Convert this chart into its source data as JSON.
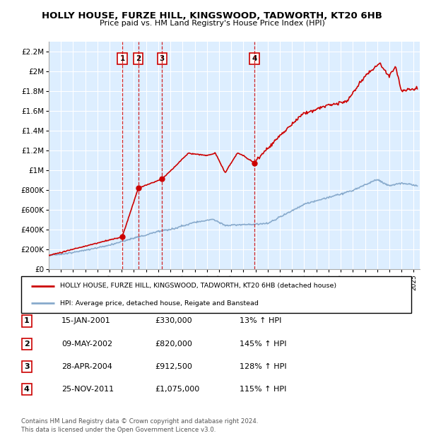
{
  "title": "HOLLY HOUSE, FURZE HILL, KINGSWOOD, TADWORTH, KT20 6HB",
  "subtitle": "Price paid vs. HM Land Registry's House Price Index (HPI)",
  "ylim": [
    0,
    2300000
  ],
  "yticks": [
    0,
    200000,
    400000,
    600000,
    800000,
    1000000,
    1200000,
    1400000,
    1600000,
    1800000,
    2000000,
    2200000
  ],
  "ytick_labels": [
    "£0",
    "£200K",
    "£400K",
    "£600K",
    "£800K",
    "£1M",
    "£1.2M",
    "£1.4M",
    "£1.6M",
    "£1.8M",
    "£2M",
    "£2.2M"
  ],
  "background_color": "#ddeeff",
  "grid_color": "#ffffff",
  "sale_dates": [
    2001.04,
    2002.36,
    2004.32,
    2011.9
  ],
  "sale_prices": [
    330000,
    820000,
    912500,
    1075000
  ],
  "sale_labels": [
    "1",
    "2",
    "3",
    "4"
  ],
  "legend_house": "HOLLY HOUSE, FURZE HILL, KINGSWOOD, TADWORTH, KT20 6HB (detached house)",
  "legend_hpi": "HPI: Average price, detached house, Reigate and Banstead",
  "table_rows": [
    [
      "1",
      "15-JAN-2001",
      "£330,000",
      "13% ↑ HPI"
    ],
    [
      "2",
      "09-MAY-2002",
      "£820,000",
      "145% ↑ HPI"
    ],
    [
      "3",
      "28-APR-2004",
      "£912,500",
      "128% ↑ HPI"
    ],
    [
      "4",
      "25-NOV-2011",
      "£1,075,000",
      "115% ↑ HPI"
    ]
  ],
  "footnote1": "Contains HM Land Registry data © Crown copyright and database right 2024.",
  "footnote2": "This data is licensed under the Open Government Licence v3.0.",
  "house_color": "#cc0000",
  "hpi_color": "#88aacc",
  "dashed_line_color": "#cc0000"
}
